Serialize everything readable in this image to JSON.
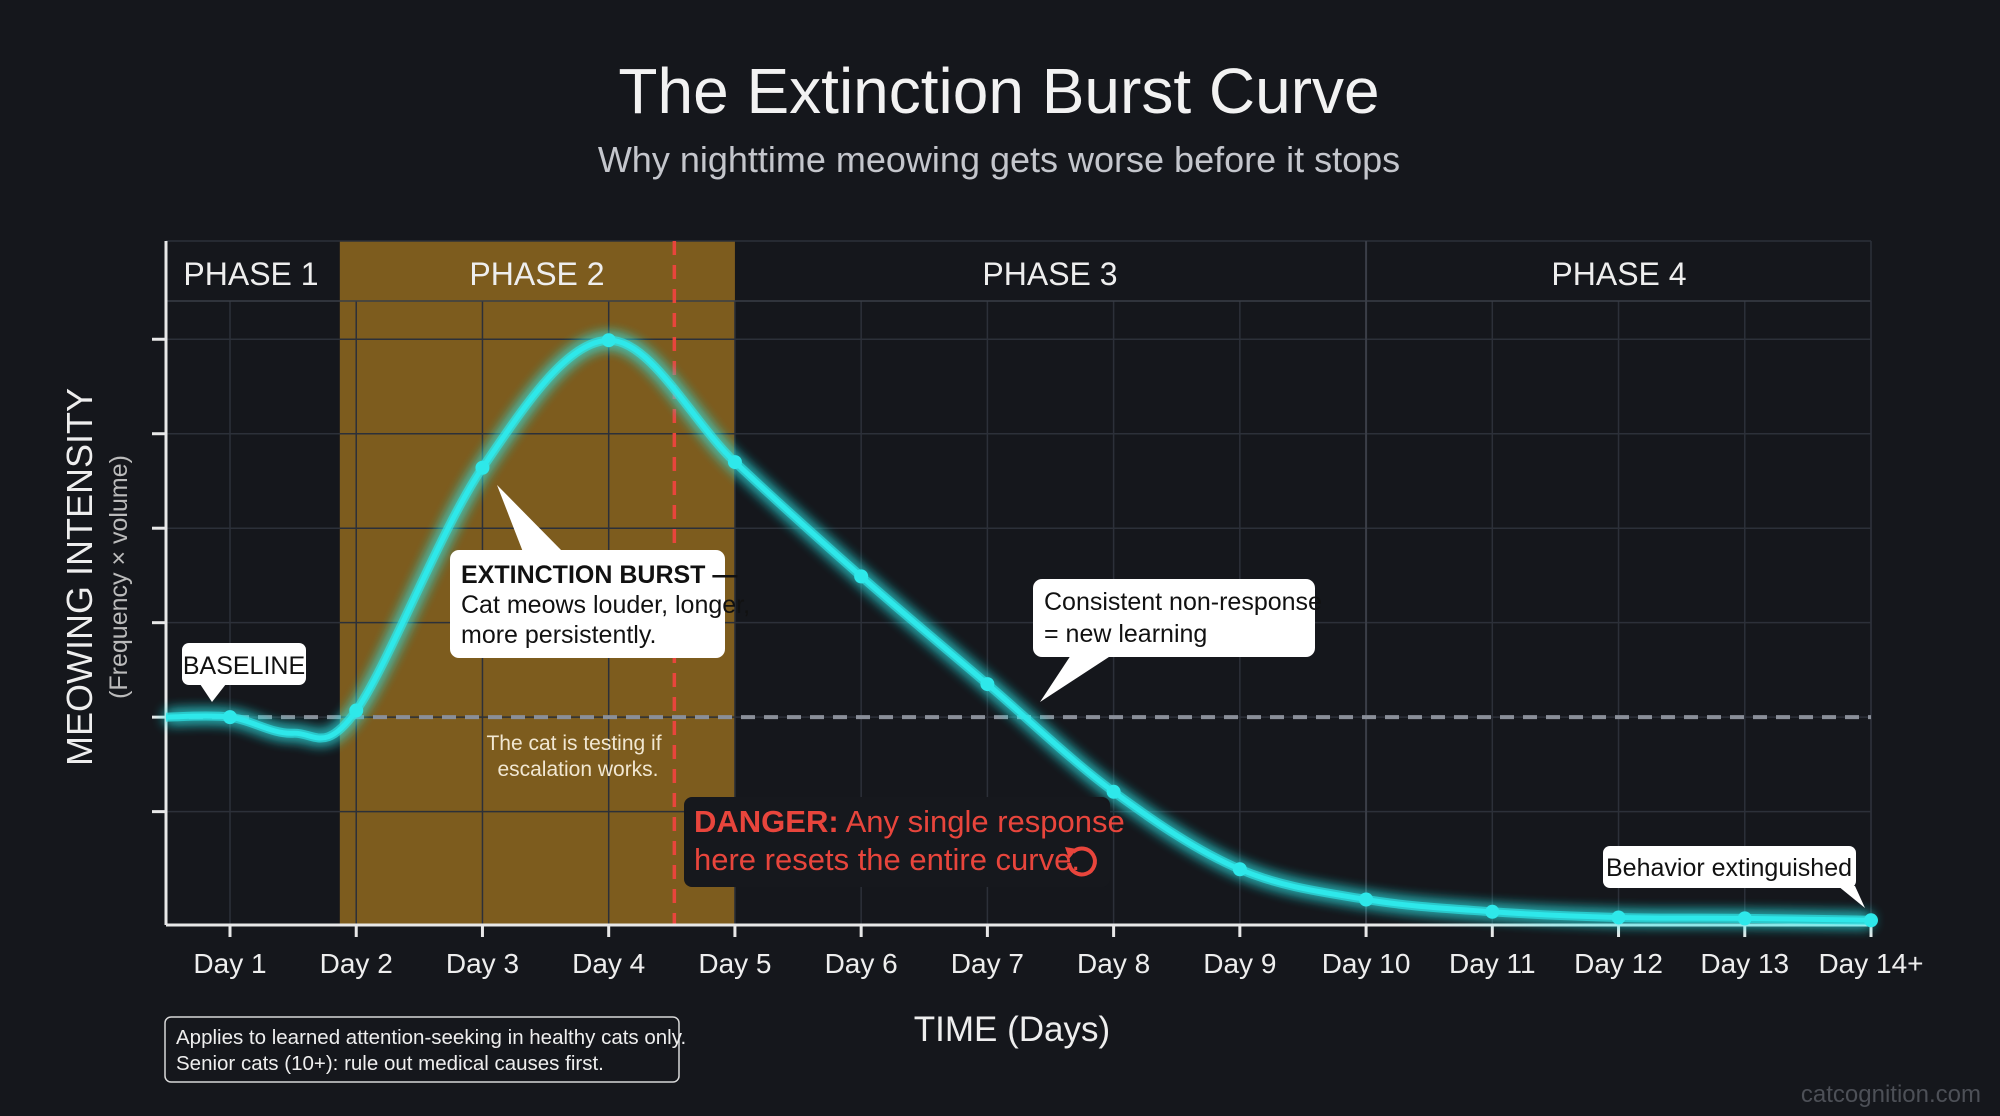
{
  "title": "The Extinction Burst Curve",
  "subtitle": "Why nighttime meowing gets worse before it stops",
  "colors": {
    "background": "#15171c",
    "curve": "#2ee8ea",
    "phase2_fill": "#7d5c1e",
    "danger": "#e8453c",
    "baseline": "#8a8f99",
    "grid": "#2c3039"
  },
  "phases": [
    {
      "label": "PHASE 1"
    },
    {
      "label": "PHASE 2"
    },
    {
      "label": "PHASE 3"
    },
    {
      "label": "PHASE 4"
    }
  ],
  "annotations": {
    "baseline": "BASELINE",
    "burst_title": "EXTINCTION BURST —",
    "burst_line1": "Cat meows louder, longer,",
    "burst_line2": "more persistently.",
    "testing_line1": "The cat is testing if",
    "testing_line2": "escalation works.",
    "danger_label": "DANGER:",
    "danger_line1": "Any single response",
    "danger_line2": "here resets the entire curve.",
    "danger_icon": "reset-arrow-icon",
    "consistent_line1": "Consistent non-response",
    "consistent_line2": "= new learning",
    "extinguished": "Behavior extinguished"
  },
  "note": {
    "line1": "Applies to learned attention-seeking in healthy cats only.",
    "line2": "Senior cats (10+): rule out medical causes first."
  },
  "watermark": "catcognition.com",
  "chart_data": {
    "type": "line",
    "title": "The Extinction Burst Curve",
    "subtitle": "Why nighttime meowing gets worse before it stops",
    "xlabel": "TIME (Days)",
    "ylabel": "MEOWING INTENSITY",
    "ylabel_sub": "(Frequency × volume)",
    "categories": [
      "Day 1",
      "Day 2",
      "Day 3",
      "Day 4",
      "Day 5",
      "Day 6",
      "Day 7",
      "Day 8",
      "Day 9",
      "Day 10",
      "Day 11",
      "Day 12",
      "Day 13",
      "Day 14+"
    ],
    "values": [
      2.2,
      2.27,
      4.84,
      6.19,
      4.9,
      3.69,
      2.55,
      1.41,
      0.59,
      0.27,
      0.14,
      0.08,
      0.07,
      0.05
    ],
    "baseline_value": 2.2,
    "ylim": [
      0,
      7.24
    ],
    "y_ticks": [
      1.2,
      2.2,
      3.2,
      4.2,
      5.2,
      6.2
    ],
    "y_tick_labels": false,
    "grid": true,
    "phase_boundaries_day": [
      1.87,
      5,
      10
    ],
    "danger_marker_day": 4.52,
    "legend": "none"
  }
}
